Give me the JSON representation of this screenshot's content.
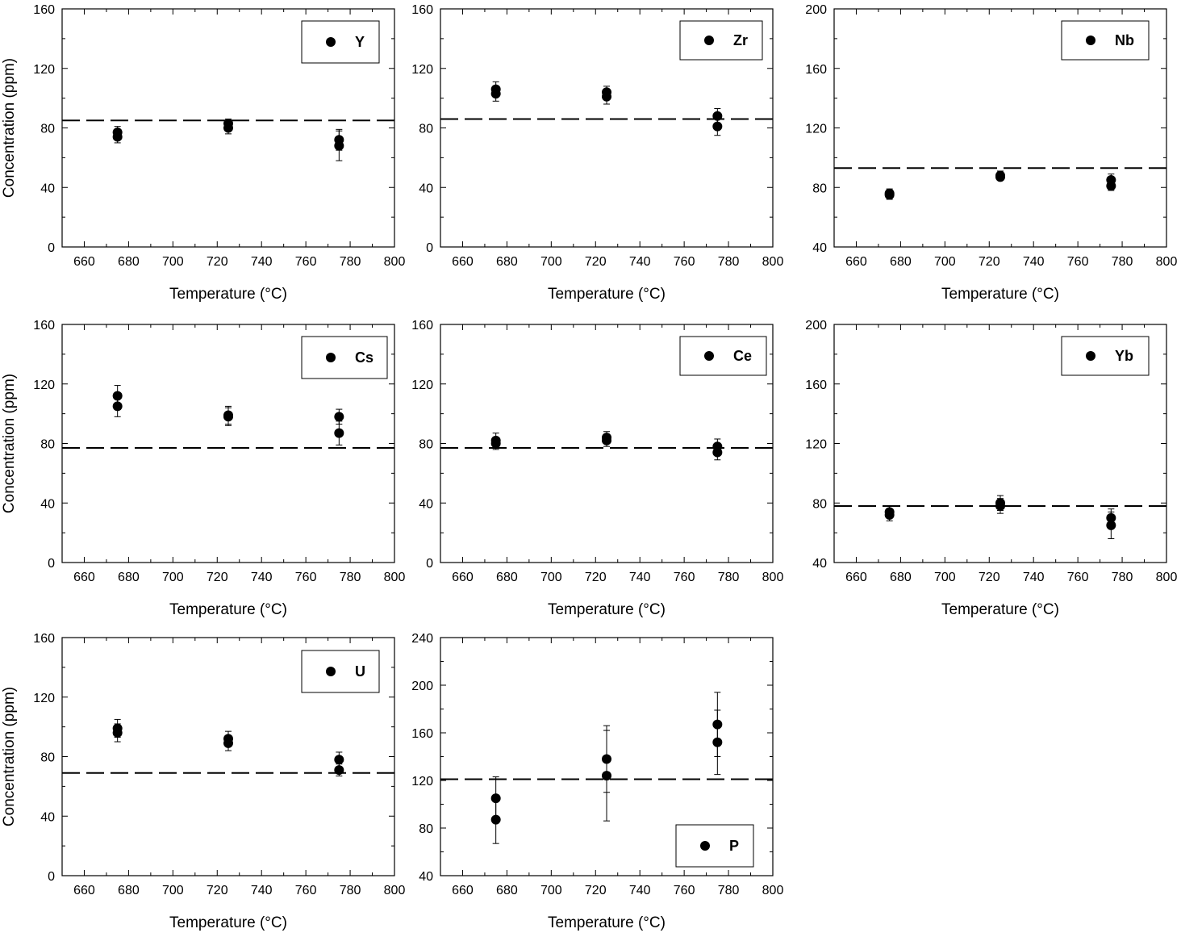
{
  "figure": {
    "xlabel": "Temperature (°C)",
    "ylabel": "Concentration (ppm)"
  },
  "chart_data": [
    {
      "type": "scatter",
      "title": "",
      "legend": "Y",
      "legend_position": "top-right",
      "xlabel": "Temperature (°C)",
      "ylabel": "Concentration (ppm)",
      "xlim": [
        650,
        800
      ],
      "ylim": [
        0,
        160
      ],
      "xticks": [
        660,
        680,
        700,
        720,
        740,
        760,
        780,
        800
      ],
      "yticks": [
        0,
        40,
        80,
        120,
        160
      ],
      "reference_line": 85,
      "points": [
        {
          "x": 675,
          "y": 77,
          "err": 4
        },
        {
          "x": 675,
          "y": 74,
          "err": 4
        },
        {
          "x": 725,
          "y": 83,
          "err": 3
        },
        {
          "x": 725,
          "y": 80,
          "err": 4
        },
        {
          "x": 775,
          "y": 72,
          "err": 7
        },
        {
          "x": 775,
          "y": 68,
          "err": 10
        }
      ]
    },
    {
      "type": "scatter",
      "title": "",
      "legend": "Zr",
      "legend_position": "top-right",
      "xlabel": "Temperature (°C)",
      "ylabel": "",
      "xlim": [
        650,
        800
      ],
      "ylim": [
        0,
        160
      ],
      "xticks": [
        660,
        680,
        700,
        720,
        740,
        760,
        780,
        800
      ],
      "yticks": [
        0,
        40,
        80,
        120,
        160
      ],
      "reference_line": 86,
      "points": [
        {
          "x": 675,
          "y": 106,
          "err": 5
        },
        {
          "x": 675,
          "y": 103,
          "err": 5
        },
        {
          "x": 725,
          "y": 104,
          "err": 4
        },
        {
          "x": 725,
          "y": 101,
          "err": 5
        },
        {
          "x": 775,
          "y": 88,
          "err": 5
        },
        {
          "x": 775,
          "y": 81,
          "err": 6
        }
      ]
    },
    {
      "type": "scatter",
      "title": "",
      "legend": "Nb",
      "legend_position": "top-right",
      "xlabel": "Temperature (°C)",
      "ylabel": "",
      "xlim": [
        650,
        800
      ],
      "ylim": [
        40,
        200
      ],
      "xticks": [
        660,
        680,
        700,
        720,
        740,
        760,
        780,
        800
      ],
      "yticks": [
        40,
        80,
        120,
        160,
        200
      ],
      "reference_line": 93,
      "points": [
        {
          "x": 675,
          "y": 76,
          "err": 3
        },
        {
          "x": 675,
          "y": 75,
          "err": 3
        },
        {
          "x": 725,
          "y": 88,
          "err": 3
        },
        {
          "x": 725,
          "y": 87,
          "err": 2
        },
        {
          "x": 775,
          "y": 85,
          "err": 4
        },
        {
          "x": 775,
          "y": 81,
          "err": 3
        }
      ]
    },
    {
      "type": "scatter",
      "title": "",
      "legend": "Cs",
      "legend_position": "top-right",
      "xlabel": "Temperature (°C)",
      "ylabel": "Concentration (ppm)",
      "xlim": [
        650,
        800
      ],
      "ylim": [
        0,
        160
      ],
      "xticks": [
        660,
        680,
        700,
        720,
        740,
        760,
        780,
        800
      ],
      "yticks": [
        0,
        40,
        80,
        120,
        160
      ],
      "reference_line": 77,
      "points": [
        {
          "x": 675,
          "y": 112,
          "err": 7
        },
        {
          "x": 675,
          "y": 105,
          "err": 7
        },
        {
          "x": 725,
          "y": 99,
          "err": 6
        },
        {
          "x": 725,
          "y": 98,
          "err": 6
        },
        {
          "x": 775,
          "y": 98,
          "err": 5
        },
        {
          "x": 775,
          "y": 87,
          "err": 8
        }
      ]
    },
    {
      "type": "scatter",
      "title": "",
      "legend": "Ce",
      "legend_position": "top-right",
      "xlabel": "Temperature (°C)",
      "ylabel": "",
      "xlim": [
        650,
        800
      ],
      "ylim": [
        0,
        160
      ],
      "xticks": [
        660,
        680,
        700,
        720,
        740,
        760,
        780,
        800
      ],
      "yticks": [
        0,
        40,
        80,
        120,
        160
      ],
      "reference_line": 77,
      "points": [
        {
          "x": 675,
          "y": 82,
          "err": 5
        },
        {
          "x": 675,
          "y": 80,
          "err": 4
        },
        {
          "x": 725,
          "y": 84,
          "err": 4
        },
        {
          "x": 725,
          "y": 82,
          "err": 4
        },
        {
          "x": 775,
          "y": 78,
          "err": 5
        },
        {
          "x": 775,
          "y": 74,
          "err": 5
        }
      ]
    },
    {
      "type": "scatter",
      "title": "",
      "legend": "Yb",
      "legend_position": "top-right",
      "xlabel": "Temperature (°C)",
      "ylabel": "",
      "xlim": [
        650,
        800
      ],
      "ylim": [
        40,
        200
      ],
      "xticks": [
        660,
        680,
        700,
        720,
        740,
        760,
        780,
        800
      ],
      "yticks": [
        40,
        80,
        120,
        160,
        200
      ],
      "reference_line": 78,
      "points": [
        {
          "x": 675,
          "y": 74,
          "err": 4
        },
        {
          "x": 675,
          "y": 72,
          "err": 4
        },
        {
          "x": 725,
          "y": 80,
          "err": 5
        },
        {
          "x": 725,
          "y": 78,
          "err": 5
        },
        {
          "x": 775,
          "y": 70,
          "err": 6
        },
        {
          "x": 775,
          "y": 65,
          "err": 9
        }
      ]
    },
    {
      "type": "scatter",
      "title": "",
      "legend": "U",
      "legend_position": "top-right",
      "xlabel": "Temperature (°C)",
      "ylabel": "Concentration (ppm)",
      "xlim": [
        650,
        800
      ],
      "ylim": [
        0,
        160
      ],
      "xticks": [
        660,
        680,
        700,
        720,
        740,
        760,
        780,
        800
      ],
      "yticks": [
        0,
        40,
        80,
        120,
        160
      ],
      "reference_line": 69,
      "points": [
        {
          "x": 675,
          "y": 99,
          "err": 6
        },
        {
          "x": 675,
          "y": 96,
          "err": 6
        },
        {
          "x": 725,
          "y": 92,
          "err": 5
        },
        {
          "x": 725,
          "y": 89,
          "err": 5
        },
        {
          "x": 775,
          "y": 78,
          "err": 5
        },
        {
          "x": 775,
          "y": 71,
          "err": 4
        }
      ]
    },
    {
      "type": "scatter",
      "title": "",
      "legend": "P",
      "legend_position": "bottom-right",
      "xlabel": "Temperature (°C)",
      "ylabel": "",
      "xlim": [
        650,
        800
      ],
      "ylim": [
        40,
        240
      ],
      "xticks": [
        660,
        680,
        700,
        720,
        740,
        760,
        780,
        800
      ],
      "yticks": [
        40,
        80,
        120,
        160,
        200,
        240
      ],
      "reference_line": 121,
      "points": [
        {
          "x": 675,
          "y": 105,
          "err": 18
        },
        {
          "x": 675,
          "y": 87,
          "err": 20
        },
        {
          "x": 725,
          "y": 138,
          "err": 28
        },
        {
          "x": 725,
          "y": 124,
          "err": 38
        },
        {
          "x": 775,
          "y": 167,
          "err": 27
        },
        {
          "x": 775,
          "y": 152,
          "err": 27
        }
      ]
    }
  ]
}
